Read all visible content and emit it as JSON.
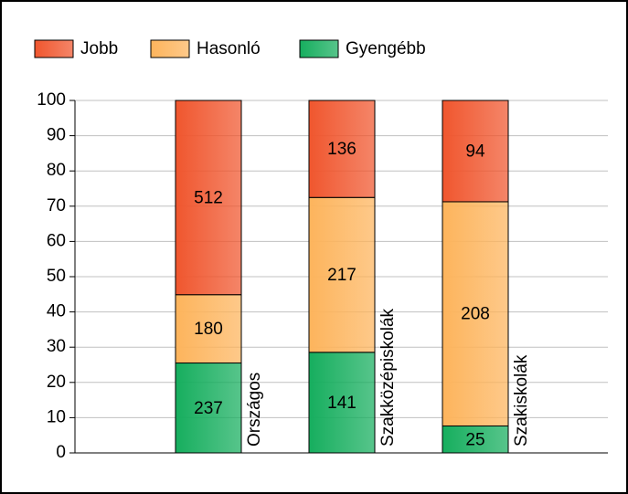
{
  "chart_data": {
    "type": "bar",
    "stacked": "percent",
    "categories": [
      "Országos",
      "Szakközépiskolák",
      "Szakiskolák"
    ],
    "series": [
      {
        "name": "Jobb",
        "color": "#f0562e",
        "values": [
          512,
          136,
          94
        ]
      },
      {
        "name": "Hasonló",
        "color": "#fdb45c",
        "values": [
          180,
          217,
          208
        ]
      },
      {
        "name": "Gyengébb",
        "color": "#16ae5e",
        "values": [
          237,
          141,
          25
        ]
      }
    ],
    "ylim": [
      0,
      100
    ],
    "yticks": [
      0,
      10,
      20,
      30,
      40,
      50,
      60,
      70,
      80,
      90,
      100
    ],
    "grid": true,
    "legend": "top"
  }
}
